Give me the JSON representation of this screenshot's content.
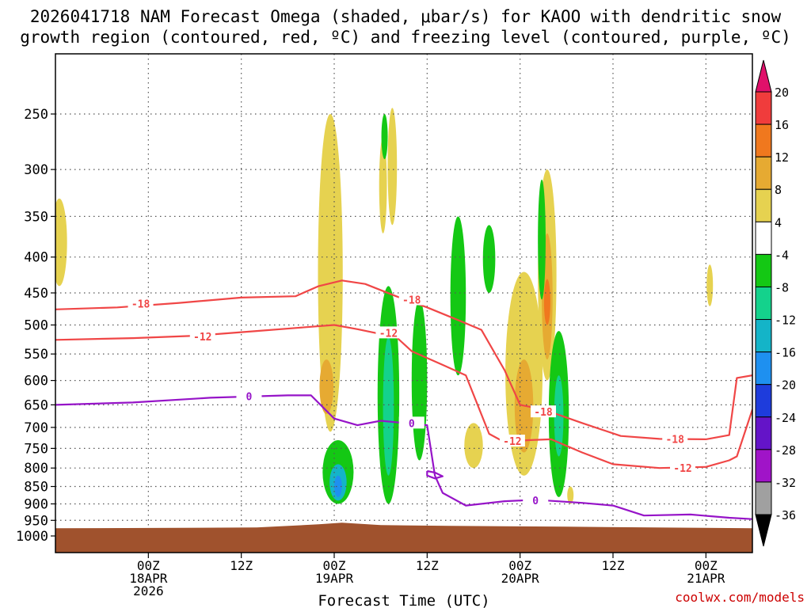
{
  "chart_data": {
    "type": "heatmap",
    "title_line1": "2026041718 NAM Forecast Omega (shaded, μbar/s) for KAOO with dendritic snow",
    "title_line2": "growth region (contoured, red, ºC) and freezing level (contoured, purple, ºC)",
    "xlabel": "Forecast Time (UTC)",
    "credit": "coolwx.com/models",
    "y_axis": {
      "type": "pressure_hPa",
      "inverted": true,
      "range": [
        1000,
        200
      ],
      "ticks": [
        250,
        300,
        350,
        400,
        450,
        500,
        550,
        600,
        650,
        700,
        750,
        800,
        850,
        900,
        950,
        1000
      ]
    },
    "x_axis": {
      "unit": "forecast_hours",
      "range": [
        -6,
        84
      ],
      "ticks": [
        {
          "hour": 6,
          "lines": [
            "00Z",
            "18APR",
            "2026"
          ]
        },
        {
          "hour": 18,
          "lines": [
            "12Z"
          ]
        },
        {
          "hour": 30,
          "lines": [
            "00Z",
            "19APR"
          ]
        },
        {
          "hour": 42,
          "lines": [
            "12Z"
          ]
        },
        {
          "hour": 54,
          "lines": [
            "00Z",
            "20APR"
          ]
        },
        {
          "hour": 66,
          "lines": [
            "12Z"
          ]
        },
        {
          "hour": 78,
          "lines": [
            "00Z",
            "21APR"
          ]
        }
      ]
    },
    "colorbar": {
      "labels": [
        "20",
        "16",
        "12",
        "8",
        "4",
        "-4",
        "-8",
        "-12",
        "-16",
        "-20",
        "-24",
        "-28",
        "-32",
        "-36"
      ],
      "colors": [
        "#e0106a",
        "#f03c3c",
        "#f0781e",
        "#e6aa32",
        "#e6d250",
        "#ffffff",
        "#14c814",
        "#14d28c",
        "#14b4c8",
        "#1e90f0",
        "#1e3cdc",
        "#6414c8",
        "#a014c8",
        "#a0a0a0",
        "#000000"
      ]
    },
    "omega_regions": [
      {
        "value": 6,
        "hour": -5.5,
        "p_top": 330,
        "p_bottom": 440,
        "half_width_h": 1.0
      },
      {
        "value": 6,
        "hour": 29.5,
        "p_top": 250,
        "p_bottom": 710,
        "half_width_h": 1.6
      },
      {
        "value": 10,
        "hour": 29,
        "p_top": 560,
        "p_bottom": 670,
        "half_width_h": 0.9
      },
      {
        "value": 6,
        "hour": 36.3,
        "p_top": 270,
        "p_bottom": 370,
        "half_width_h": 0.5
      },
      {
        "value": 6,
        "hour": 37.5,
        "p_top": 245,
        "p_bottom": 360,
        "half_width_h": 0.6
      },
      {
        "value": -6,
        "hour": 36.5,
        "p_top": 250,
        "p_bottom": 290,
        "half_width_h": 0.15
      },
      {
        "value": -8,
        "hour": 30.5,
        "p_top": 730,
        "p_bottom": 900,
        "half_width_h": 2.0
      },
      {
        "value": -14,
        "hour": 30.5,
        "p_top": 790,
        "p_bottom": 890,
        "half_width_h": 1.1
      },
      {
        "value": -18,
        "hour": 30.5,
        "p_top": 820,
        "p_bottom": 880,
        "half_width_h": 0.5
      },
      {
        "value": -8,
        "hour": 37,
        "p_top": 440,
        "p_bottom": 900,
        "half_width_h": 1.4
      },
      {
        "value": -12,
        "hour": 37,
        "p_top": 520,
        "p_bottom": 820,
        "half_width_h": 0.7
      },
      {
        "value": -8,
        "hour": 41,
        "p_top": 460,
        "p_bottom": 780,
        "half_width_h": 1.0
      },
      {
        "value": -8,
        "hour": 46,
        "p_top": 350,
        "p_bottom": 590,
        "half_width_h": 1.0
      },
      {
        "value": -8,
        "hour": 50,
        "p_top": 360,
        "p_bottom": 450,
        "half_width_h": 0.8
      },
      {
        "value": 6,
        "hour": 48,
        "p_top": 690,
        "p_bottom": 800,
        "half_width_h": 1.2
      },
      {
        "value": 6,
        "hour": 54.5,
        "p_top": 420,
        "p_bottom": 820,
        "half_width_h": 2.4
      },
      {
        "value": 10,
        "hour": 54.5,
        "p_top": 560,
        "p_bottom": 760,
        "half_width_h": 1.2
      },
      {
        "value": 6,
        "hour": 57.5,
        "p_top": 300,
        "p_bottom": 600,
        "half_width_h": 1.2
      },
      {
        "value": 10,
        "hour": 57.5,
        "p_top": 370,
        "p_bottom": 560,
        "half_width_h": 0.7
      },
      {
        "value": 14,
        "hour": 57.5,
        "p_top": 430,
        "p_bottom": 500,
        "half_width_h": 0.3
      },
      {
        "value": -8,
        "hour": 56.8,
        "p_top": 310,
        "p_bottom": 460,
        "half_width_h": 0.5
      },
      {
        "value": -8,
        "hour": 59,
        "p_top": 510,
        "p_bottom": 880,
        "half_width_h": 1.3
      },
      {
        "value": -12,
        "hour": 59,
        "p_top": 590,
        "p_bottom": 770,
        "half_width_h": 0.6
      },
      {
        "value": 6,
        "hour": 60.5,
        "p_top": 850,
        "p_bottom": 900,
        "half_width_h": 0.3
      },
      {
        "value": 6,
        "hour": 78.5,
        "p_top": 410,
        "p_bottom": 470,
        "half_width_h": 0.3
      }
    ],
    "contours": [
      {
        "name": "-18C",
        "color": "#f04646",
        "label": "-18",
        "points": [
          [
            -6,
            475
          ],
          [
            2,
            472
          ],
          [
            10,
            465
          ],
          [
            18,
            457
          ],
          [
            25,
            455
          ],
          [
            28,
            440
          ],
          [
            31,
            432
          ],
          [
            34,
            437
          ],
          [
            38,
            455
          ],
          [
            42,
            472
          ],
          [
            46,
            492
          ],
          [
            49,
            508
          ],
          [
            52,
            580
          ],
          [
            54,
            650
          ],
          [
            57,
            660
          ],
          [
            62,
            690
          ],
          [
            67,
            720
          ],
          [
            72,
            727
          ],
          [
            78,
            728
          ],
          [
            81,
            718
          ],
          [
            82,
            595
          ],
          [
            84,
            590
          ]
        ],
        "label_positions": [
          [
            5,
            466
          ],
          [
            40,
            460
          ],
          [
            57,
            665
          ],
          [
            74,
            727
          ]
        ]
      },
      {
        "name": "-12C",
        "color": "#f04646",
        "label": "-12",
        "points": [
          [
            -6,
            525
          ],
          [
            4,
            522
          ],
          [
            12,
            518
          ],
          [
            20,
            510
          ],
          [
            25,
            505
          ],
          [
            30,
            500
          ],
          [
            33,
            507
          ],
          [
            36,
            515
          ],
          [
            38,
            520
          ],
          [
            40,
            545
          ],
          [
            44,
            570
          ],
          [
            47,
            590
          ],
          [
            50,
            715
          ],
          [
            52,
            735
          ],
          [
            55,
            730
          ],
          [
            58,
            728
          ],
          [
            62,
            760
          ],
          [
            66,
            790
          ],
          [
            72,
            800
          ],
          [
            78,
            797
          ],
          [
            81,
            780
          ],
          [
            82,
            770
          ],
          [
            84,
            660
          ]
        ],
        "label_positions": [
          [
            13,
            519
          ],
          [
            37,
            513
          ],
          [
            53,
            732
          ],
          [
            75,
            800
          ]
        ]
      },
      {
        "name": "0C",
        "color": "#9614c8",
        "label": "0",
        "points": [
          [
            -6,
            650
          ],
          [
            4,
            645
          ],
          [
            14,
            635
          ],
          [
            24,
            630
          ],
          [
            27,
            630
          ],
          [
            30,
            680
          ],
          [
            33,
            695
          ],
          [
            36,
            685
          ],
          [
            39,
            690
          ],
          [
            42,
            695
          ],
          [
            43,
            820
          ],
          [
            44,
            868
          ],
          [
            47,
            905
          ],
          [
            52,
            892
          ],
          [
            56,
            888
          ],
          [
            62,
            897
          ],
          [
            66,
            905
          ],
          [
            70,
            935
          ],
          [
            76,
            932
          ],
          [
            81,
            942
          ],
          [
            84,
            946
          ]
        ],
        "label_positions": [
          [
            19,
            632
          ],
          [
            40,
            690
          ],
          [
            56,
            889
          ]
        ]
      },
      {
        "name": "0C-loop",
        "color": "#9614c8",
        "label": "",
        "points": [
          [
            42,
            808
          ],
          [
            43,
            812
          ],
          [
            44,
            822
          ],
          [
            43,
            828
          ],
          [
            42,
            820
          ],
          [
            42,
            808
          ]
        ],
        "label_positions": []
      }
    ],
    "terrain_top_hPa": 960
  }
}
